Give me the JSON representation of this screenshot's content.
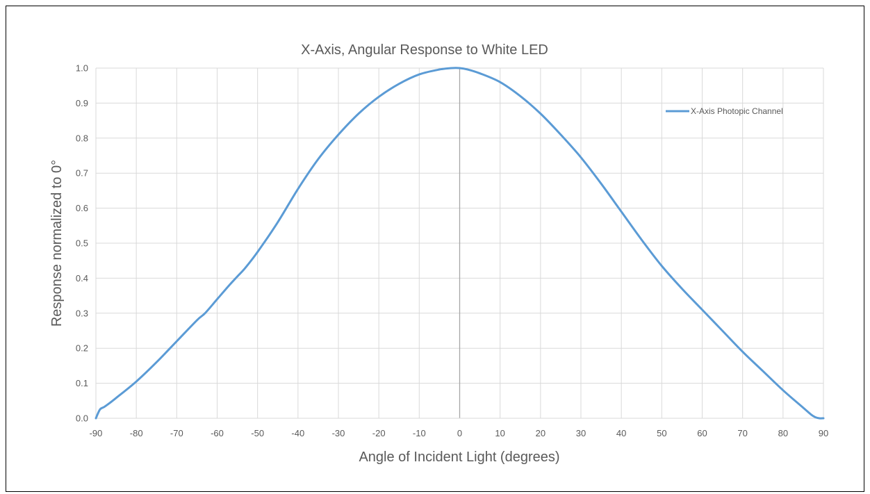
{
  "chart_data": {
    "type": "line",
    "title": "X-Axis, Angular Response to White LED",
    "xlabel": "Angle of Incident Light (degrees)",
    "ylabel": "Response normalized to 0°",
    "xlim": [
      -90,
      90
    ],
    "ylim": [
      0.0,
      1.0
    ],
    "x_ticks": [
      "-90",
      "-80",
      "-70",
      "-60",
      "-50",
      "-40",
      "-30",
      "-20",
      "-10",
      "0",
      "10",
      "20",
      "30",
      "40",
      "50",
      "60",
      "70",
      "80",
      "90"
    ],
    "y_ticks": [
      "0.0",
      "0.1",
      "0.2",
      "0.3",
      "0.4",
      "0.5",
      "0.6",
      "0.7",
      "0.8",
      "0.9",
      "1.0"
    ],
    "grid": true,
    "legend_position": "top-right",
    "colors": {
      "series": "#5b9bd5",
      "grid": "#d9d9d9",
      "zero_line": "#a6a6a6",
      "text": "#595959"
    },
    "series": [
      {
        "name": "X-Axis Photopic Channel",
        "x": [
          -90,
          -89,
          -88,
          -87,
          -85,
          -80,
          -75,
          -70,
          -65,
          -63,
          -60,
          -57,
          -55,
          -53,
          -50,
          -45,
          -40,
          -35,
          -30,
          -25,
          -20,
          -15,
          -10,
          -5,
          -2,
          0,
          2,
          5,
          10,
          15,
          20,
          25,
          30,
          35,
          40,
          45,
          50,
          55,
          60,
          65,
          70,
          75,
          80,
          85,
          87,
          88,
          89,
          90
        ],
        "y": [
          0.0,
          0.025,
          0.032,
          0.04,
          0.058,
          0.105,
          0.16,
          0.22,
          0.28,
          0.3,
          0.34,
          0.38,
          0.405,
          0.43,
          0.475,
          0.56,
          0.655,
          0.74,
          0.81,
          0.87,
          0.918,
          0.955,
          0.982,
          0.996,
          1.0,
          1.0,
          0.996,
          0.985,
          0.96,
          0.92,
          0.87,
          0.81,
          0.745,
          0.67,
          0.59,
          0.51,
          0.435,
          0.37,
          0.31,
          0.25,
          0.19,
          0.135,
          0.08,
          0.03,
          0.01,
          0.003,
          0.0,
          0.0
        ]
      }
    ]
  }
}
